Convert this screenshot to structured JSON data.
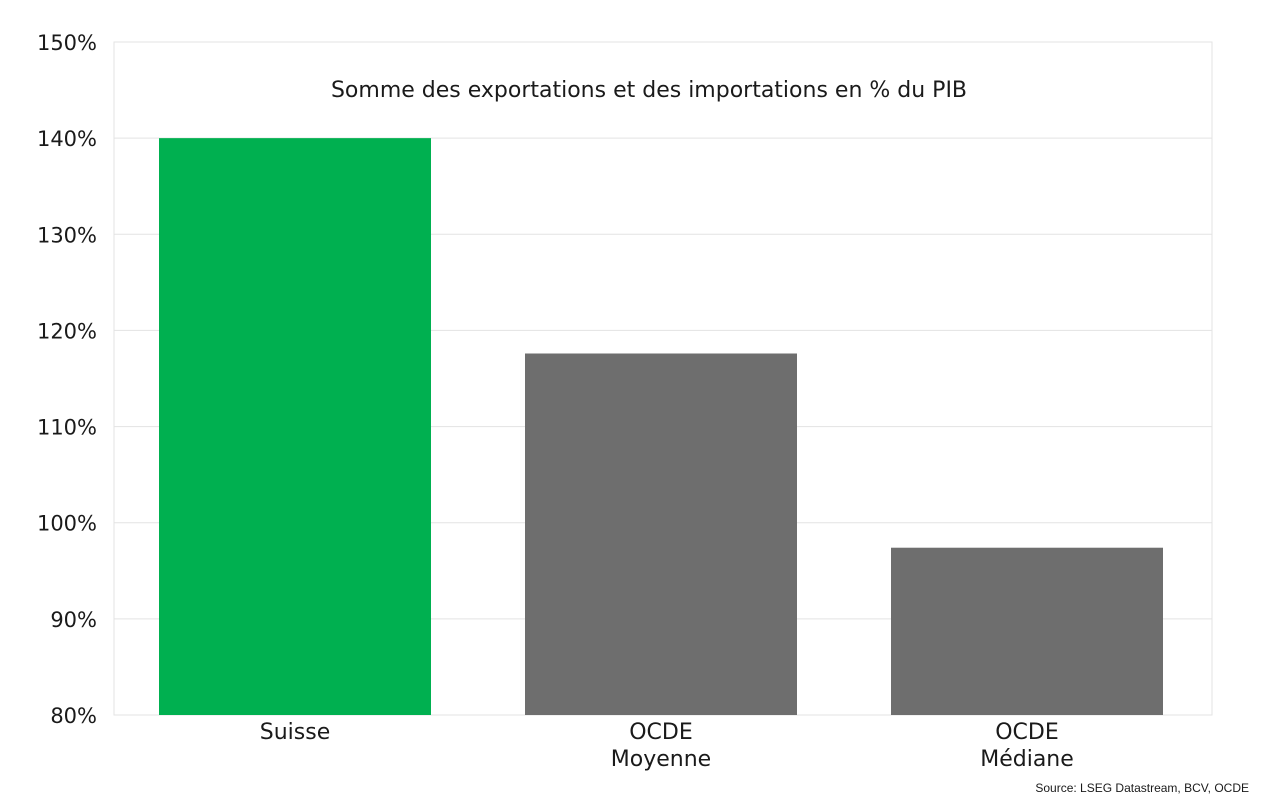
{
  "chart_data": {
    "type": "bar",
    "title": "Somme des exportations et des importations en % du PIB",
    "categories": [
      [
        "Suisse"
      ],
      [
        "OCDE",
        "Moyenne"
      ],
      [
        "OCDE",
        "Médiane"
      ]
    ],
    "values": [
      140,
      117.6,
      97.4
    ],
    "colors": [
      "#00b050",
      "#6e6e6e",
      "#6e6e6e"
    ],
    "ylim": [
      80,
      150
    ],
    "yticks": [
      "80%",
      "90%",
      "100%",
      "110%",
      "120%",
      "130%",
      "140%",
      "150%"
    ],
    "ytick_values": [
      80,
      90,
      100,
      110,
      120,
      130,
      140,
      150
    ],
    "grid": true,
    "xlabel": "",
    "ylabel": ""
  },
  "source": "Source: LSEG Datastream, BCV, OCDE"
}
